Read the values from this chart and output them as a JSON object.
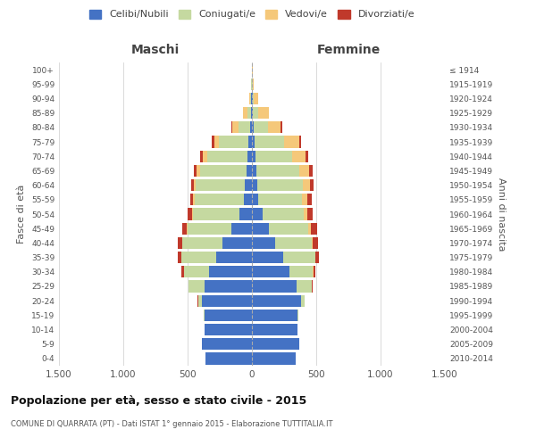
{
  "age_groups": [
    "0-4",
    "5-9",
    "10-14",
    "15-19",
    "20-24",
    "25-29",
    "30-34",
    "35-39",
    "40-44",
    "45-49",
    "50-54",
    "55-59",
    "60-64",
    "65-69",
    "70-74",
    "75-79",
    "80-84",
    "85-89",
    "90-94",
    "95-99",
    "100+"
  ],
  "birth_years": [
    "2010-2014",
    "2005-2009",
    "2000-2004",
    "1995-1999",
    "1990-1994",
    "1985-1989",
    "1980-1984",
    "1975-1979",
    "1970-1974",
    "1965-1969",
    "1960-1964",
    "1955-1959",
    "1950-1954",
    "1945-1949",
    "1940-1944",
    "1935-1939",
    "1930-1934",
    "1925-1929",
    "1920-1924",
    "1915-1919",
    "≤ 1914"
  ],
  "male_celibe": [
    360,
    390,
    370,
    370,
    390,
    370,
    330,
    280,
    230,
    160,
    100,
    65,
    55,
    45,
    35,
    25,
    15,
    8,
    5,
    3,
    2
  ],
  "male_coniugato": [
    0,
    0,
    0,
    5,
    30,
    120,
    200,
    270,
    310,
    340,
    360,
    380,
    380,
    360,
    310,
    230,
    90,
    30,
    8,
    2,
    0
  ],
  "male_vedovo": [
    0,
    0,
    0,
    0,
    0,
    0,
    1,
    2,
    3,
    5,
    8,
    10,
    15,
    25,
    35,
    40,
    50,
    30,
    10,
    2,
    0
  ],
  "male_divorziato": [
    0,
    0,
    0,
    0,
    2,
    5,
    15,
    25,
    30,
    40,
    30,
    25,
    25,
    20,
    20,
    15,
    5,
    2,
    0,
    0,
    0
  ],
  "female_celibe": [
    340,
    370,
    355,
    355,
    380,
    350,
    290,
    240,
    180,
    130,
    80,
    50,
    45,
    35,
    25,
    20,
    15,
    10,
    5,
    3,
    2
  ],
  "female_coniugato": [
    0,
    0,
    0,
    5,
    30,
    115,
    185,
    250,
    285,
    310,
    320,
    340,
    350,
    330,
    290,
    230,
    110,
    40,
    12,
    3,
    0
  ],
  "female_vedovo": [
    0,
    0,
    0,
    0,
    0,
    1,
    2,
    4,
    8,
    15,
    30,
    40,
    55,
    80,
    100,
    120,
    100,
    80,
    30,
    8,
    2
  ],
  "female_divorziato": [
    0,
    0,
    0,
    0,
    2,
    5,
    15,
    30,
    40,
    50,
    45,
    35,
    30,
    25,
    20,
    15,
    8,
    5,
    2,
    0,
    0
  ],
  "colors": {
    "celibe": "#4472c4",
    "coniugato": "#c5d9a0",
    "vedovo": "#f5c87a",
    "divorziato": "#c0392b"
  },
  "legend_labels": [
    "Celibi/Nubili",
    "Coniugati/e",
    "Vedovi/e",
    "Divorziati/e"
  ],
  "title": "Popolazione per età, sesso e stato civile - 2015",
  "subtitle": "COMUNE DI QUARRATA (PT) - Dati ISTAT 1° gennaio 2015 - Elaborazione TUTTITALIA.IT",
  "ylabel_left": "Fasce di età",
  "ylabel_right": "Anni di nascita",
  "xlabel_left": "Maschi",
  "xlabel_right": "Femmine",
  "xlim": 1500,
  "background_color": "#ffffff",
  "grid_color": "#cccccc"
}
